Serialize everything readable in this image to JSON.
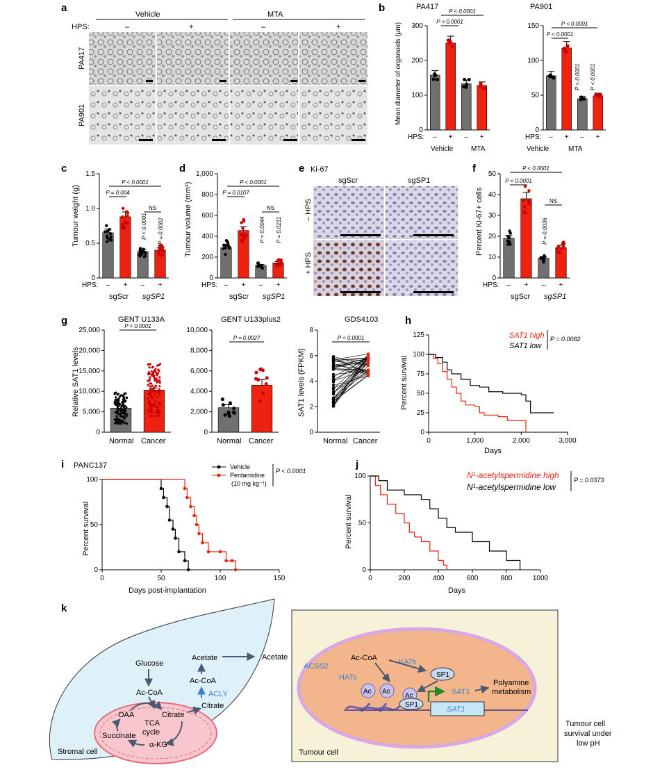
{
  "colors": {
    "grey": "#707070",
    "red": "#ee2211",
    "blue_label": "#3d7fd1",
    "stroma": "#dff1f8",
    "tumour_bg": "#f6f2d8",
    "nucleus": "#f3b58a",
    "mito": "#e86a7a"
  },
  "panel_labels": {
    "a": "a",
    "b": "b",
    "c": "c",
    "d": "d",
    "e": "e",
    "f": "f",
    "g": "g",
    "h": "h",
    "i": "i",
    "j": "j",
    "k": "k"
  },
  "panel_a": {
    "vehicle": "Vehicle",
    "mta": "MTA",
    "hps": "HPS:",
    "minus": "–",
    "plus": "+",
    "row1": "PA417",
    "row2": "PA901"
  },
  "panel_b": {
    "ylabel": "Mean diameter of organoids (μm)",
    "hps": "HPS:",
    "minus": "–",
    "plus": "+",
    "vehicle": "Vehicle",
    "mta": "MTA",
    "charts": [
      {
        "title": "PA417",
        "ticks": [
          "0",
          "100",
          "200",
          "300"
        ],
        "p_top": "P < 0.0001",
        "p_sig": "P < 0.0001"
      },
      {
        "title": "PA901",
        "ticks": [
          "0",
          "50",
          "100",
          "150"
        ],
        "p_top": "P < 0.0001",
        "p_sig": "P < 0.0001",
        "p_v1": "P < 0.0001",
        "p_v2": "P < 0.0001"
      }
    ]
  },
  "panel_c": {
    "ylabel": "Tumour weight (g)",
    "ticks": [
      "0",
      "0.5",
      "1.0",
      "1.5"
    ],
    "p_top": "P < 0.0001",
    "p1": "P = 0.004",
    "ns": "NS",
    "p_v1": "P < 0.0001",
    "p_v2": "P = 0.0002",
    "hps": "HPS:",
    "minus": "–",
    "plus": "+",
    "g1": "sgScr",
    "g2": "sgSP1"
  },
  "panel_d": {
    "ylabel": "Tumour volume (mm³)",
    "ticks": [
      "0",
      "200",
      "400",
      "600",
      "800",
      "1,000"
    ],
    "p_top": "P < 0.0001",
    "p1": "P = 0.0107",
    "ns": "NS",
    "p_v1": "P = 0.0044",
    "p_v2": "P = 0.0211",
    "hps": "HPS:",
    "minus": "–",
    "plus": "+",
    "g1": "sgScr",
    "g2": "sgSP1"
  },
  "panel_e": {
    "title": "Ki-67",
    "col1": "sgScr",
    "col2": "sgSP1",
    "row1": "– HPS",
    "row2": "+ HPS"
  },
  "panel_f": {
    "ylabel": "Percent Ki-67+ cells",
    "ticks": [
      "0",
      "10",
      "20",
      "30",
      "40",
      "50"
    ],
    "p_top": "P < 0.0001",
    "p1": "P < 0.0001",
    "ns": "NS",
    "p_v1": "P = 0.0036",
    "hps": "HPS:",
    "minus": "–",
    "plus": "+",
    "g1": "sgScr",
    "g2": "sgSP1"
  },
  "panel_g": {
    "c1": {
      "title": "GENT U133A",
      "ylabel": "Relative SAT1 levels",
      "ticks": [
        "0",
        "5,000",
        "10,000",
        "15,000",
        "20,000",
        "25,000"
      ],
      "p": "P < 0.0001",
      "x1": "Normal",
      "x2": "Cancer"
    },
    "c2": {
      "title": "GENT U133plus2",
      "ticks": [
        "0",
        "2,000",
        "4,000",
        "6,000",
        "8,000",
        "10,000"
      ],
      "p": "P = 0.0027",
      "x1": "Normal",
      "x2": "Cancer"
    },
    "c3": {
      "title": "GDS4103",
      "ylabel": "SAT1 levels (FPKM)",
      "ticks": [
        "0",
        "2",
        "4",
        "6",
        "8"
      ],
      "p": "P < 0.0001",
      "x1": "Normal",
      "x2": "Cancer"
    }
  },
  "panel_h": {
    "ylabel": "Percent survival",
    "xlabel": "Days",
    "yticks": [
      "0",
      "25",
      "50",
      "75",
      "100",
      "125"
    ],
    "xticks": [
      "0",
      "1,000",
      "2,000",
      "3,000"
    ],
    "leg_high": "SAT1 high",
    "leg_low": "SAT1 low",
    "p": "P = 0.0082"
  },
  "panel_i": {
    "title": "PANC137",
    "ylabel": "Percent survival",
    "xlabel": "Days post-implantation",
    "yticks": [
      "0",
      "50",
      "100"
    ],
    "xticks": [
      "0",
      "50",
      "100",
      "150"
    ],
    "leg1": "Vehicle",
    "leg2": "Pentamidine",
    "leg2b": "(10 mg kg⁻¹)",
    "p": "P < 0.0001"
  },
  "panel_j": {
    "ylabel": "Percent survival",
    "xlabel": "Days",
    "yticks": [
      "0",
      "50",
      "100"
    ],
    "xticks": [
      "0",
      "200",
      "400",
      "600",
      "800",
      "1000"
    ],
    "leg_high": "N¹-acetylspermidine high",
    "leg_low": "N¹-acetylspermidine low",
    "p": "P = 0.0373"
  },
  "panel_k": {
    "glucose": "Glucose",
    "accoa": "Ac-CoA",
    "oaa": "OAA",
    "tca": "TCA",
    "cycle": "cycle",
    "citrate": "Citrate",
    "succinate": "Succinate",
    "akg": "α-KG",
    "acetate": "Acetate",
    "accoa2": "Ac-CoA",
    "acly": "ACLY",
    "citrate2": "Citrate",
    "stromal": "Stromal cell",
    "acetate_mid": "Acetate",
    "acss2": "ACSS2",
    "accoa3": "Ac-CoA",
    "hats": "HATs",
    "kats": "KATs",
    "sp1": "SP1",
    "ac": "Ac",
    "sat1": "SAT1",
    "sat1_gene": "SAT1",
    "poly1": "Polyamine",
    "poly2": "metabolism",
    "tumour": "Tumour cell",
    "surv1": "Tumour cell",
    "surv2": "survival under",
    "surv3": "low pH"
  },
  "chart_data": [
    {
      "type": "bar",
      "panel": "b-PA417",
      "categories": [
        "Vehicle –",
        "Vehicle +",
        "MTA –",
        "MTA +"
      ],
      "values": [
        158,
        250,
        133,
        128
      ],
      "ylim": [
        0,
        300
      ],
      "ylabel": "Mean diameter of organoids (μm)"
    },
    {
      "type": "bar",
      "panel": "b-PA901",
      "categories": [
        "Vehicle –",
        "Vehicle +",
        "MTA –",
        "MTA +"
      ],
      "values": [
        78,
        118,
        45,
        49
      ],
      "ylim": [
        0,
        150
      ],
      "ylabel": "Mean diameter of organoids (μm)"
    },
    {
      "type": "bar",
      "panel": "c",
      "categories": [
        "sgScr –",
        "sgScr +",
        "sgSP1 –",
        "sgSP1 +"
      ],
      "values": [
        0.65,
        0.88,
        0.38,
        0.4
      ],
      "ylim": [
        0,
        1.5
      ],
      "ylabel": "Tumour weight (g)"
    },
    {
      "type": "bar",
      "panel": "d",
      "categories": [
        "sgScr –",
        "sgScr +",
        "sgSP1 –",
        "sgSP1 +"
      ],
      "values": [
        290,
        455,
        120,
        145
      ],
      "ylim": [
        0,
        1000
      ],
      "ylabel": "Tumour volume (mm³)"
    },
    {
      "type": "bar",
      "panel": "f",
      "categories": [
        "sgScr –",
        "sgScr +",
        "sgSP1 –",
        "sgSP1 +"
      ],
      "values": [
        19,
        38,
        9.5,
        14.5
      ],
      "ylim": [
        0,
        50
      ],
      "ylabel": "Percent Ki-67+ cells"
    },
    {
      "type": "bar",
      "panel": "g-U133A",
      "categories": [
        "Normal",
        "Cancer"
      ],
      "values": [
        5900,
        10300
      ],
      "ylim": [
        0,
        25000
      ]
    },
    {
      "type": "bar",
      "panel": "g-U133plus2",
      "categories": [
        "Normal",
        "Cancer"
      ],
      "values": [
        2400,
        4600
      ],
      "ylim": [
        0,
        10000
      ]
    },
    {
      "type": "line",
      "panel": "h",
      "series": [
        {
          "name": "SAT1 high",
          "x": [
            0,
            100,
            200,
            300,
            400,
            500,
            600,
            700,
            800,
            1000,
            1100,
            1200,
            1500,
            1700,
            2000,
            2100
          ],
          "y": [
            100,
            95,
            88,
            78,
            68,
            58,
            50,
            40,
            35,
            33,
            25,
            22,
            20,
            15,
            15,
            0
          ]
        },
        {
          "name": "SAT1 low",
          "x": [
            0,
            150,
            300,
            400,
            500,
            700,
            900,
            1100,
            1300,
            1600,
            2000,
            2100,
            2200,
            2700
          ],
          "y": [
            100,
            96,
            90,
            80,
            75,
            68,
            60,
            58,
            52,
            50,
            48,
            40,
            25,
            25
          ]
        }
      ],
      "xlim": [
        0,
        3000
      ],
      "ylim": [
        0,
        125
      ]
    },
    {
      "type": "line",
      "panel": "i",
      "series": [
        {
          "name": "Vehicle",
          "x": [
            0,
            50,
            52,
            55,
            57,
            60,
            62,
            65,
            70,
            73
          ],
          "y": [
            100,
            90,
            80,
            70,
            55,
            45,
            35,
            20,
            10,
            0
          ]
        },
        {
          "name": "Pentamidine",
          "x": [
            0,
            70,
            72,
            75,
            78,
            80,
            82,
            85,
            90,
            100,
            105,
            110,
            113
          ],
          "y": [
            100,
            90,
            80,
            70,
            60,
            50,
            40,
            30,
            20,
            20,
            10,
            10,
            0
          ]
        }
      ],
      "xlim": [
        0,
        150
      ],
      "ylim": [
        0,
        100
      ]
    },
    {
      "type": "line",
      "panel": "j",
      "series": [
        {
          "name": "N¹-acetylspermidine high",
          "x": [
            0,
            30,
            60,
            100,
            150,
            200,
            230,
            260,
            300,
            350,
            400,
            430,
            450
          ],
          "y": [
            100,
            90,
            80,
            70,
            60,
            50,
            40,
            35,
            30,
            20,
            10,
            5,
            0
          ]
        },
        {
          "name": "N¹-acetylspermidine low",
          "x": [
            0,
            50,
            100,
            200,
            300,
            350,
            400,
            450,
            500,
            600,
            700,
            800,
            880
          ],
          "y": [
            100,
            95,
            85,
            80,
            75,
            65,
            55,
            45,
            40,
            30,
            20,
            10,
            0
          ]
        }
      ],
      "xlim": [
        0,
        1000
      ],
      "ylim": [
        0,
        100
      ]
    }
  ]
}
